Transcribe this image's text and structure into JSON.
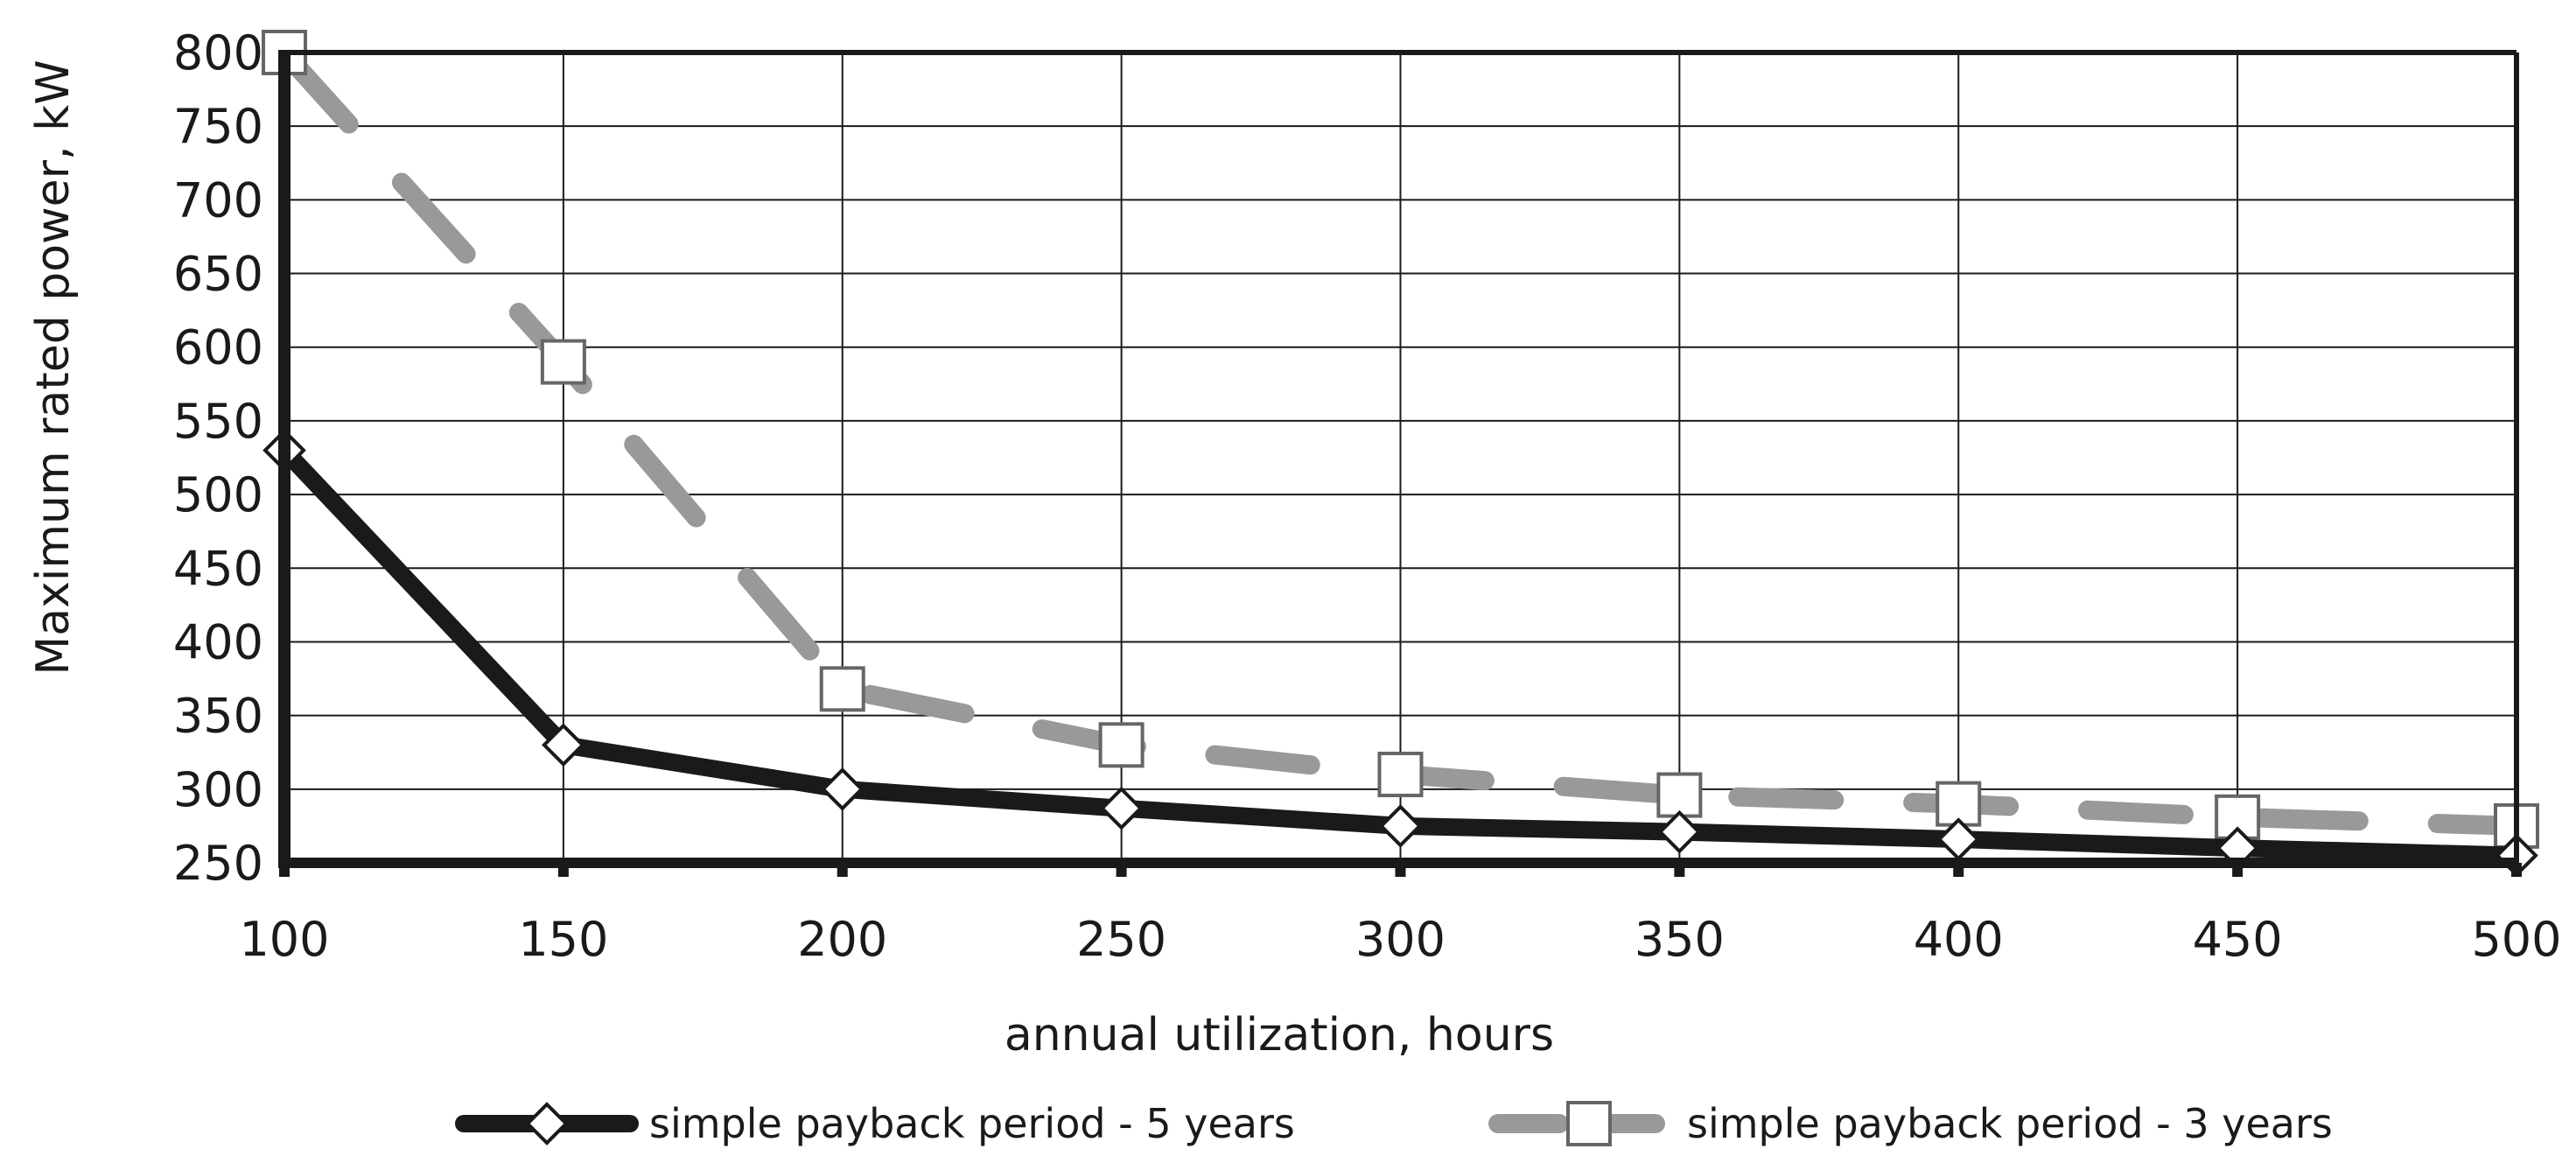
{
  "chart_data": {
    "type": "line",
    "xlabel": "annual utilization, hours",
    "ylabel": "Maximum rated power, kW",
    "x": [
      100,
      150,
      200,
      250,
      300,
      350,
      400,
      450,
      500
    ],
    "xlim": [
      100,
      500
    ],
    "ylim": [
      250,
      800
    ],
    "x_ticks": [
      100,
      150,
      200,
      250,
      300,
      350,
      400,
      450,
      500
    ],
    "y_ticks": [
      250,
      300,
      350,
      400,
      450,
      500,
      550,
      600,
      650,
      700,
      750,
      800
    ],
    "grid": true,
    "legend_position": "bottom",
    "series": [
      {
        "name": "simple payback period - 5 years",
        "values": [
          530,
          330,
          300,
          287,
          275,
          271,
          266,
          260,
          255
        ],
        "color": "#1a1a1a",
        "line_style": "solid",
        "marker": "diamond"
      },
      {
        "name": "simple payback period - 3 years",
        "values": [
          800,
          590,
          368,
          330,
          310,
          296,
          290,
          281,
          275
        ],
        "color": "#999999",
        "line_style": "dashed",
        "marker": "square"
      }
    ]
  }
}
